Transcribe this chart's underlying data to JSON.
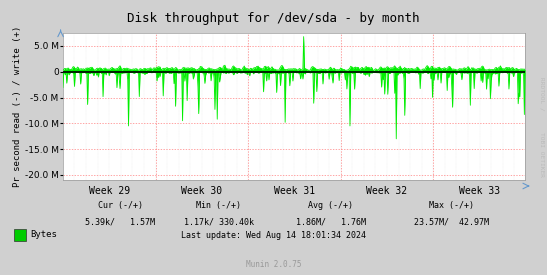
{
  "title": "Disk throughput for /dev/sda - by month",
  "ylabel": "Pr second read (-) / write (+)",
  "xlabel_ticks": [
    "Week 29",
    "Week 30",
    "Week 31",
    "Week 32",
    "Week 33"
  ],
  "ylim": [
    -21000000,
    7500000
  ],
  "yticks": [
    -20000000,
    -15000000,
    -10000000,
    -5000000,
    0,
    5000000
  ],
  "bg_color": "#d0d0d0",
  "plot_bg_color": "#ffffff",
  "grid_color_h": "#ff8080",
  "grid_color_v": "#ff8080",
  "line_color": "#00ee00",
  "zero_line_color": "#000000",
  "side_label_top": "RRDTOOL /",
  "side_label_bot": "TOBI OETIKER",
  "legend_label": "Bytes",
  "legend_color": "#00cc00",
  "last_update": "Last update: Wed Aug 14 18:01:34 2024",
  "munin_version": "Munin 2.0.75",
  "num_points": 600,
  "seed": 42
}
